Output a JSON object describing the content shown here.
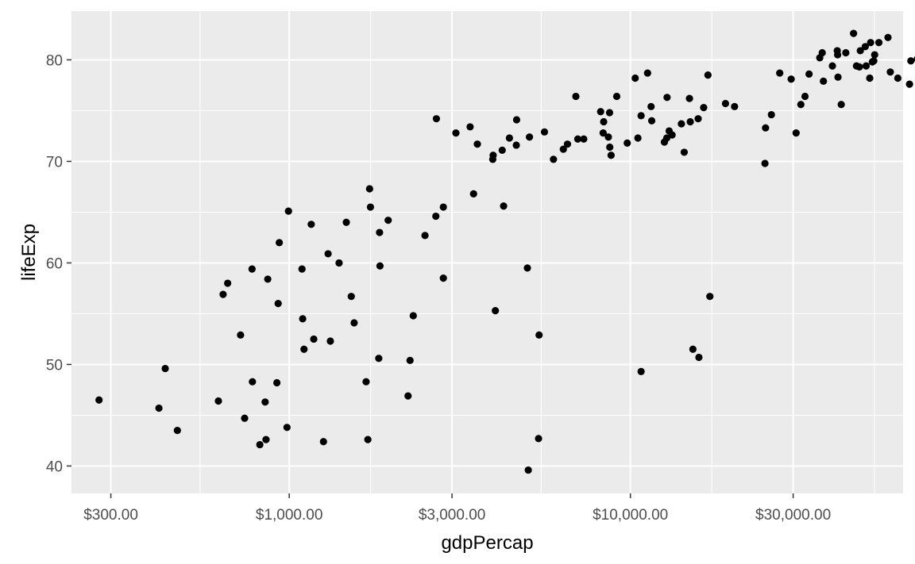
{
  "chart_data": {
    "type": "scatter",
    "title": "",
    "xlabel": "gdpPercap",
    "ylabel": "lifeExp",
    "x_scale": "log10",
    "xlim": [
      230,
      63000
    ],
    "ylim": [
      37.3,
      84.8
    ],
    "x_ticks": [
      {
        "value": 300,
        "label": "$300.00"
      },
      {
        "value": 1000,
        "label": "$1,000.00"
      },
      {
        "value": 3000,
        "label": "$3,000.00"
      },
      {
        "value": 10000,
        "label": "$10,000.00"
      },
      {
        "value": 30000,
        "label": "$30,000.00"
      }
    ],
    "y_ticks": [
      {
        "value": 40,
        "label": "40"
      },
      {
        "value": 50,
        "label": "50"
      },
      {
        "value": 60,
        "label": "60"
      },
      {
        "value": 70,
        "label": "70"
      },
      {
        "value": 80,
        "label": "80"
      }
    ],
    "grid": true,
    "colors": {
      "panel": "#ebebeb",
      "grid": "#ffffff",
      "point": "#000000"
    },
    "points": [
      [
        277,
        46.5
      ],
      [
        415,
        45.7
      ],
      [
        433,
        49.6
      ],
      [
        470,
        43.5
      ],
      [
        620,
        46.4
      ],
      [
        640,
        56.9
      ],
      [
        660,
        58.0
      ],
      [
        720,
        52.9
      ],
      [
        740,
        44.7
      ],
      [
        780,
        48.3
      ],
      [
        778,
        59.4
      ],
      [
        820,
        42.1
      ],
      [
        855,
        42.6
      ],
      [
        850,
        46.3
      ],
      [
        865,
        58.4
      ],
      [
        920,
        48.2
      ],
      [
        928,
        56.0
      ],
      [
        935,
        62.0
      ],
      [
        985,
        43.8
      ],
      [
        995,
        65.1
      ],
      [
        1090,
        59.4
      ],
      [
        1095,
        54.5
      ],
      [
        1105,
        51.5
      ],
      [
        1160,
        63.8
      ],
      [
        1180,
        52.5
      ],
      [
        1260,
        42.4
      ],
      [
        1300,
        60.9
      ],
      [
        1320,
        52.3
      ],
      [
        1400,
        60.0
      ],
      [
        1470,
        64.0
      ],
      [
        1520,
        56.7
      ],
      [
        1550,
        54.1
      ],
      [
        1680,
        48.3
      ],
      [
        1700,
        42.6
      ],
      [
        1720,
        67.3
      ],
      [
        1730,
        65.5
      ],
      [
        1830,
        50.6
      ],
      [
        1840,
        63.0
      ],
      [
        1845,
        59.7
      ],
      [
        1950,
        64.2
      ],
      [
        2230,
        46.9
      ],
      [
        2260,
        50.4
      ],
      [
        2310,
        54.8
      ],
      [
        2500,
        62.7
      ],
      [
        2700,
        74.2
      ],
      [
        2690,
        64.6
      ],
      [
        2830,
        58.5
      ],
      [
        2830,
        65.5
      ],
      [
        3080,
        72.8
      ],
      [
        3390,
        73.4
      ],
      [
        3470,
        66.8
      ],
      [
        3560,
        71.7
      ],
      [
        3950,
        70.2
      ],
      [
        3960,
        70.6
      ],
      [
        4020,
        55.3
      ],
      [
        4250,
        65.6
      ],
      [
        4210,
        71.1
      ],
      [
        4420,
        72.3
      ],
      [
        4630,
        71.6
      ],
      [
        4640,
        74.1
      ],
      [
        4990,
        59.5
      ],
      [
        5020,
        39.6
      ],
      [
        5060,
        72.4
      ],
      [
        5380,
        42.7
      ],
      [
        5400,
        52.9
      ],
      [
        5600,
        72.9
      ],
      [
        5950,
        70.2
      ],
      [
        6360,
        71.2
      ],
      [
        6540,
        71.7
      ],
      [
        6920,
        76.4
      ],
      [
        7010,
        72.2
      ],
      [
        7300,
        72.2
      ],
      [
        8180,
        74.9
      ],
      [
        8320,
        72.8
      ],
      [
        8350,
        73.9
      ],
      [
        8620,
        72.4
      ],
      [
        8690,
        74.8
      ],
      [
        8700,
        71.4
      ],
      [
        8780,
        70.6
      ],
      [
        9120,
        76.4
      ],
      [
        9790,
        71.8
      ],
      [
        10330,
        78.2
      ],
      [
        10520,
        72.3
      ],
      [
        10750,
        74.5
      ],
      [
        10750,
        49.3
      ],
      [
        11230,
        78.7
      ],
      [
        11500,
        75.4
      ],
      [
        11550,
        74.0
      ],
      [
        12580,
        71.9
      ],
      [
        12810,
        76.3
      ],
      [
        12780,
        72.3
      ],
      [
        12990,
        73.0
      ],
      [
        13250,
        72.6
      ],
      [
        14110,
        73.7
      ],
      [
        14380,
        70.9
      ],
      [
        14900,
        76.2
      ],
      [
        14980,
        73.9
      ],
      [
        15250,
        51.5
      ],
      [
        15800,
        74.2
      ],
      [
        15880,
        50.7
      ],
      [
        16400,
        75.3
      ],
      [
        16880,
        78.5
      ],
      [
        17100,
        56.7
      ],
      [
        19000,
        75.7
      ],
      [
        20200,
        75.4
      ],
      [
        24900,
        73.3
      ],
      [
        24800,
        69.8
      ],
      [
        25900,
        74.6
      ],
      [
        27400,
        78.7
      ],
      [
        29600,
        78.1
      ],
      [
        30600,
        72.8
      ],
      [
        31600,
        75.6
      ],
      [
        32500,
        76.4
      ],
      [
        33400,
        78.6
      ],
      [
        35900,
        80.2
      ],
      [
        36500,
        80.7
      ],
      [
        36800,
        77.9
      ],
      [
        39100,
        79.4
      ],
      [
        40400,
        80.9
      ],
      [
        40500,
        80.5
      ],
      [
        40600,
        78.3
      ],
      [
        41500,
        75.6
      ],
      [
        42800,
        80.7
      ],
      [
        45100,
        82.6
      ],
      [
        46000,
        79.4
      ],
      [
        46900,
        79.3
      ],
      [
        47200,
        80.9
      ],
      [
        48800,
        81.3
      ],
      [
        49100,
        79.4
      ],
      [
        50300,
        78.2
      ],
      [
        50600,
        81.7
      ],
      [
        51200,
        79.8
      ],
      [
        51700,
        79.9
      ],
      [
        52000,
        80.5
      ],
      [
        53500,
        81.7
      ],
      [
        56900,
        82.2
      ],
      [
        57800,
        78.8
      ],
      [
        60800,
        78.2
      ],
      [
        65800,
        77.6
      ],
      [
        66400,
        79.9
      ],
      [
        69400,
        80.1
      ]
    ]
  }
}
